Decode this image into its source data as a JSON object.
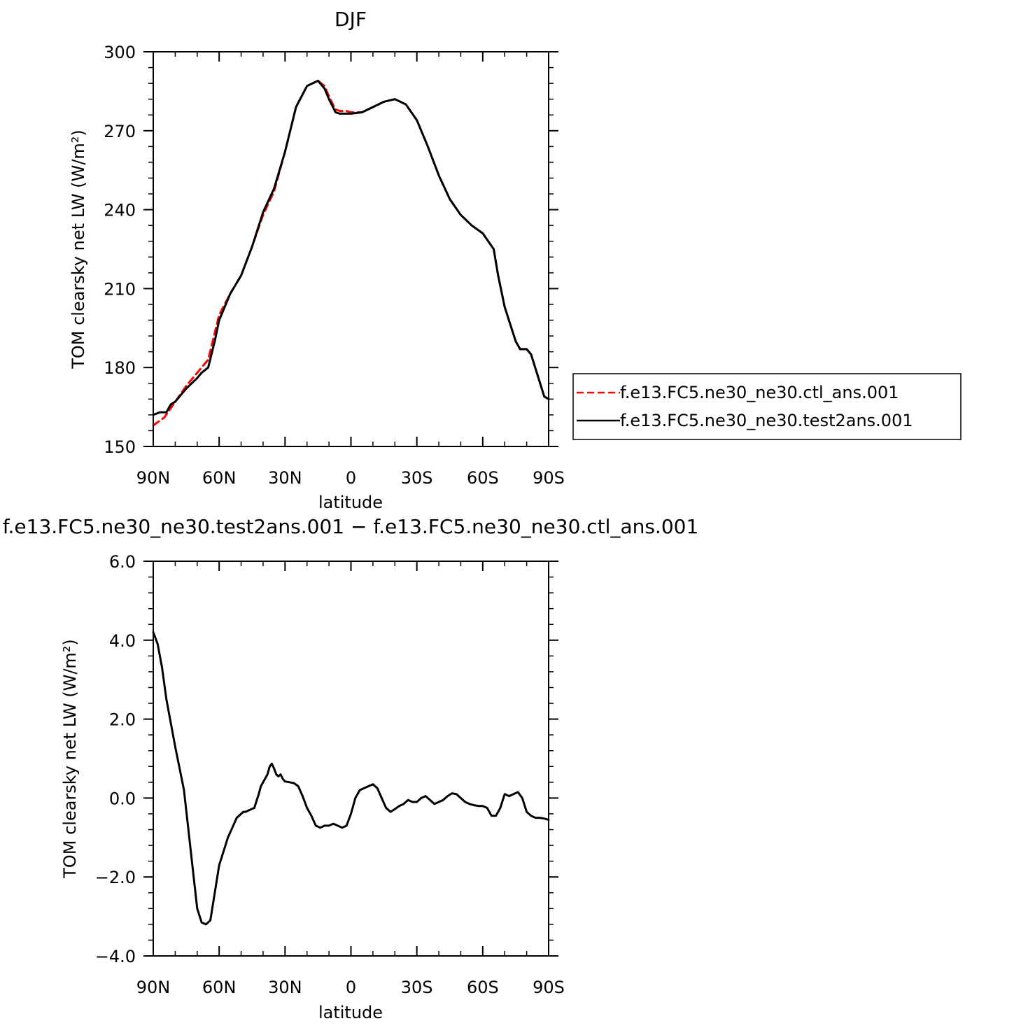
{
  "chart_data": [
    {
      "type": "line",
      "title": "DJF",
      "xlabel": "latitude",
      "ylabel": "TOM clearsky net LW (W/m²)",
      "x_range": [
        90,
        -90
      ],
      "x_ticks": [
        90,
        60,
        30,
        0,
        -30,
        -60,
        -90
      ],
      "x_tick_labels": [
        "90N",
        "60N",
        "30N",
        "0",
        "30S",
        "60S",
        "90S"
      ],
      "ylim": [
        150,
        300
      ],
      "y_ticks": [
        150,
        180,
        210,
        240,
        270,
        300
      ],
      "y_tick_labels": [
        "150",
        "180",
        "210",
        "240",
        "270",
        "300"
      ],
      "legend_position": "right",
      "series": [
        {
          "name": "f.e13.FC5.ne30_ne30.ctl_ans.001",
          "color": "#ff0000",
          "dash": "dashed",
          "x": [
            90,
            85,
            80,
            75,
            70,
            65,
            60,
            55,
            50,
            45,
            40,
            35,
            30,
            25,
            20,
            15,
            12,
            10,
            7,
            5,
            2,
            0,
            -5,
            -10,
            -15,
            -20,
            -25,
            -30,
            -35,
            -40,
            -45,
            -50,
            -55,
            -60,
            -65,
            -67,
            -70,
            -75,
            -77,
            -80,
            -82,
            -85,
            -88,
            -90
          ],
          "y": [
            158,
            161,
            167,
            173,
            178,
            183,
            200,
            208,
            215,
            226,
            238,
            247,
            262,
            279,
            287,
            289,
            287,
            283,
            278,
            277.5,
            277.5,
            277,
            277,
            279,
            281,
            282,
            280,
            274,
            264,
            253,
            244,
            238,
            234,
            231,
            225,
            215,
            203,
            190,
            187,
            187,
            185,
            177,
            169,
            168
          ]
        },
        {
          "name": "f.e13.FC5.ne30_ne30.test2ans.001",
          "color": "#000000",
          "dash": "solid",
          "x": [
            90,
            87,
            84,
            82,
            80,
            77,
            75,
            70,
            68,
            65,
            62,
            60,
            57,
            55,
            50,
            45,
            40,
            35,
            30,
            25,
            20,
            15,
            12,
            10,
            7,
            5,
            2,
            0,
            -5,
            -10,
            -15,
            -20,
            -25,
            -30,
            -35,
            -40,
            -45,
            -50,
            -55,
            -60,
            -65,
            -67,
            -70,
            -75,
            -77,
            -80,
            -82,
            -85,
            -88,
            -90
          ],
          "y": [
            162,
            163,
            163,
            166,
            167,
            170,
            172,
            176,
            178,
            180,
            190,
            198,
            204,
            208,
            215,
            226,
            239,
            248,
            262,
            279,
            287,
            289,
            286,
            282,
            277,
            276.5,
            276.5,
            276.5,
            277,
            279,
            281,
            282,
            280,
            274,
            264,
            253,
            244,
            238,
            234,
            231,
            225,
            215,
            203,
            190,
            187,
            187,
            185,
            177,
            169,
            168
          ]
        }
      ]
    },
    {
      "type": "line",
      "title": "f.e13.FC5.ne30_ne30.test2ans.001 − f.e13.FC5.ne30_ne30.ctl_ans.001",
      "xlabel": "latitude",
      "ylabel": "TOM clearsky net LW (W/m²)",
      "x_range": [
        90,
        -90
      ],
      "x_ticks": [
        90,
        60,
        30,
        0,
        -30,
        -60,
        -90
      ],
      "x_tick_labels": [
        "90N",
        "60N",
        "30N",
        "0",
        "30S",
        "60S",
        "90S"
      ],
      "ylim": [
        -4,
        6
      ],
      "y_ticks": [
        -4,
        -2,
        0,
        2,
        4,
        6
      ],
      "y_tick_labels": [
        "−4.0",
        "−2.0",
        "0.0",
        "2.0",
        "4.0",
        "6.0"
      ],
      "series": [
        {
          "color": "#000000",
          "dash": "solid",
          "x": [
            90,
            88,
            86,
            84,
            80,
            76,
            72,
            70,
            68,
            66,
            64,
            62,
            60,
            56,
            52,
            49,
            48,
            46,
            44,
            42,
            41,
            39,
            38,
            37,
            36,
            35,
            34,
            33,
            32,
            31,
            30,
            28,
            26,
            24,
            22,
            20,
            18,
            16,
            14,
            12,
            10,
            8,
            6,
            4,
            2,
            0,
            -2,
            -4,
            -6,
            -8,
            -10,
            -12,
            -14,
            -16,
            -18,
            -20,
            -22,
            -24,
            -26,
            -28,
            -30,
            -32,
            -34,
            -36,
            -38,
            -40,
            -42,
            -44,
            -46,
            -48,
            -50,
            -52,
            -54,
            -56,
            -58,
            -60,
            -62,
            -64,
            -66,
            -68,
            -70,
            -72,
            -74,
            -76,
            -78,
            -80,
            -82,
            -84,
            -86,
            -88,
            -90
          ],
          "y": [
            4.2,
            3.9,
            3.3,
            2.5,
            1.3,
            0.2,
            -1.8,
            -2.8,
            -3.15,
            -3.2,
            -3.1,
            -2.4,
            -1.7,
            -1.0,
            -0.5,
            -0.35,
            -0.35,
            -0.3,
            -0.25,
            0.1,
            0.3,
            0.5,
            0.6,
            0.8,
            0.87,
            0.75,
            0.6,
            0.55,
            0.6,
            0.48,
            0.42,
            0.4,
            0.38,
            0.3,
            0.05,
            -0.25,
            -0.45,
            -0.7,
            -0.75,
            -0.7,
            -0.7,
            -0.65,
            -0.7,
            -0.75,
            -0.7,
            -0.4,
            0.0,
            0.2,
            0.25,
            0.3,
            0.35,
            0.25,
            0.0,
            -0.25,
            -0.35,
            -0.28,
            -0.2,
            -0.15,
            -0.05,
            -0.1,
            -0.1,
            0.0,
            0.05,
            -0.05,
            -0.15,
            -0.1,
            -0.05,
            0.05,
            0.12,
            0.1,
            0.0,
            -0.1,
            -0.15,
            -0.18,
            -0.2,
            -0.2,
            -0.25,
            -0.45,
            -0.45,
            -0.25,
            0.1,
            0.05,
            0.1,
            0.15,
            0.0,
            -0.35,
            -0.45,
            -0.5,
            -0.5,
            -0.52,
            -0.55
          ]
        }
      ]
    }
  ]
}
